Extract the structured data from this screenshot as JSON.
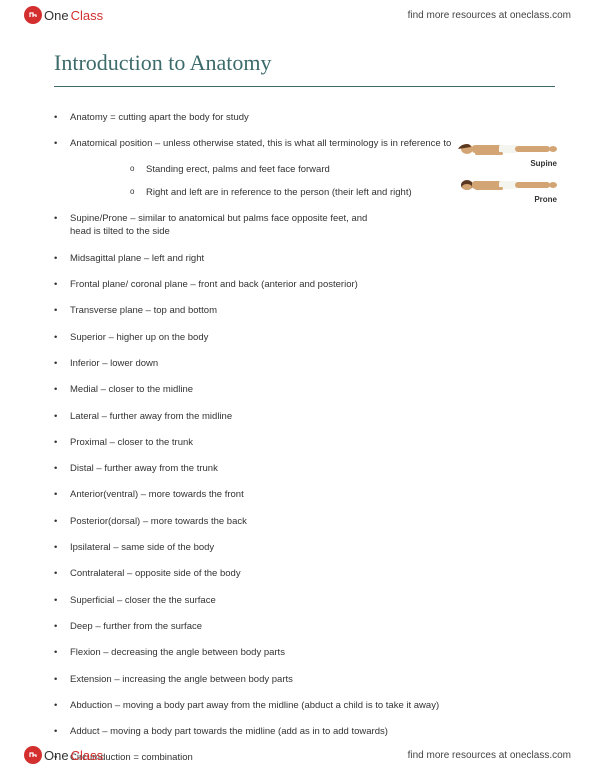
{
  "brand": {
    "part1": "One",
    "part2": "Class",
    "tagline": "find more resources at oneclass.com"
  },
  "document": {
    "title": "Introduction to Anatomy",
    "title_color": "#3d6b6b",
    "bullets": [
      {
        "text": "Anatomy = cutting apart the body for study",
        "wide": true
      },
      {
        "text": "Anatomical position – unless otherwise stated, this is what all terminology is in reference to",
        "wide": true,
        "sub": [
          "Standing erect, palms and feet face forward",
          "Right and left are in reference to the person (their left and right)"
        ]
      },
      {
        "text": "Supine/Prone – similar to anatomical but palms face opposite feet, and head is tilted to the side"
      },
      {
        "text": "Midsagittal plane – left and right"
      },
      {
        "text": "Frontal plane/ coronal plane – front and back (anterior and posterior)"
      },
      {
        "text": "Transverse plane – top and bottom"
      },
      {
        "text": "Superior – higher up on the body"
      },
      {
        "text": "Inferior – lower down"
      },
      {
        "text": "Medial – closer to the midline"
      },
      {
        "text": "Lateral – further away from the midline"
      },
      {
        "text": "Proximal – closer to the trunk"
      },
      {
        "text": "Distal – further away from the trunk"
      },
      {
        "text": "Anterior(ventral) – more towards the front"
      },
      {
        "text": "Posterior(dorsal) – more towards the back"
      },
      {
        "text": "Ipsilateral – same side of the body"
      },
      {
        "text": "Contralateral – opposite side of the body"
      },
      {
        "text": "Superficial – closer the the surface"
      },
      {
        "text": "Deep – further from the surface"
      },
      {
        "text": "Flexion – decreasing the angle between body parts"
      },
      {
        "text": "Extension – increasing the angle between body parts"
      },
      {
        "text": "Abduction – moving a body part away from the midline (abduct a child is to take it away)",
        "wide": true
      },
      {
        "text": "Adduct – moving a body part towards the midline (add as in to add towards)",
        "wide": true
      },
      {
        "text": "Circumduction = combination"
      }
    ]
  },
  "figure": {
    "supine_label": "Supine",
    "prone_label": "Prone",
    "skin_color": "#d4a574",
    "shorts_color": "#f5f5f0",
    "hair_color": "#5a3820"
  }
}
